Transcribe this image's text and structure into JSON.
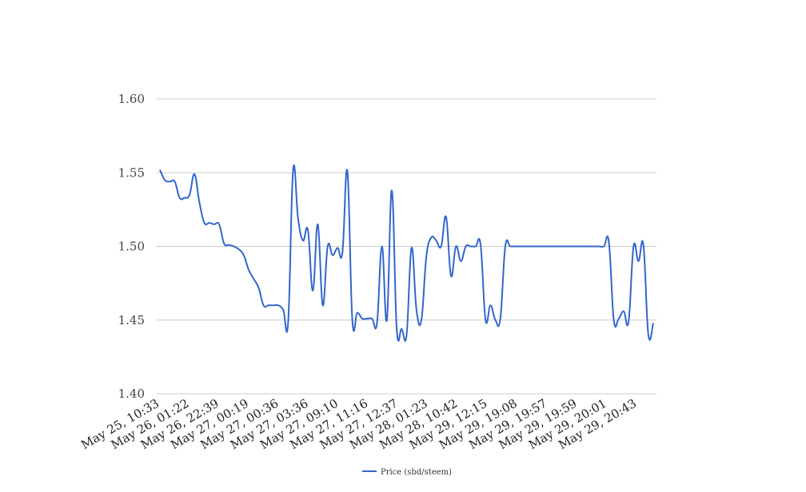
{
  "chart_data": {
    "type": "line",
    "title": "",
    "xlabel": "",
    "ylabel": "",
    "ylim": [
      1.4,
      1.6
    ],
    "yticks": [
      "1.40",
      "1.45",
      "1.50",
      "1.55",
      "1.60"
    ],
    "xtick_labels": [
      "May 25, 10:33",
      "May 26, 01:22",
      "May 26, 22:39",
      "May 27, 00:19",
      "May 27, 00:36",
      "May 27, 03:36",
      "May 27, 09:10",
      "May 27, 11:16",
      "May 27, 12:37",
      "May 28, 01:23",
      "May 28, 10:42",
      "May 29, 12:15",
      "May 29, 19:08",
      "May 29, 19:57",
      "May 29, 19:59",
      "May 29, 20:01",
      "May 29, 20:43"
    ],
    "grid": true,
    "legend_position": "bottom",
    "series": [
      {
        "name": "Price (sbd/steem)",
        "color": "#3366cc",
        "values": [
          1.552,
          1.545,
          1.544,
          1.544,
          1.533,
          1.533,
          1.535,
          1.549,
          1.53,
          1.516,
          1.516,
          1.515,
          1.515,
          1.502,
          1.501,
          1.5,
          1.498,
          1.494,
          1.484,
          1.478,
          1.472,
          1.46,
          1.46,
          1.46,
          1.46,
          1.457,
          1.449,
          1.552,
          1.519,
          1.504,
          1.511,
          1.47,
          1.515,
          1.46,
          1.5,
          1.494,
          1.499,
          1.496,
          1.551,
          1.45,
          1.455,
          1.451,
          1.451,
          1.451,
          1.448,
          1.5,
          1.45,
          1.538,
          1.444,
          1.444,
          1.44,
          1.499,
          1.457,
          1.45,
          1.493,
          1.506,
          1.504,
          1.5,
          1.52,
          1.48,
          1.5,
          1.49,
          1.5,
          1.5,
          1.5,
          1.501,
          1.45,
          1.46,
          1.45,
          1.451,
          1.5,
          1.5,
          1.5,
          1.5,
          1.5,
          1.5,
          1.5,
          1.5,
          1.5,
          1.5,
          1.5,
          1.5,
          1.5,
          1.5,
          1.5,
          1.5,
          1.5,
          1.5,
          1.5,
          1.5,
          1.5,
          1.503,
          1.45,
          1.451,
          1.456,
          1.449,
          1.5,
          1.49,
          1.501,
          1.44,
          1.448
        ]
      }
    ]
  }
}
